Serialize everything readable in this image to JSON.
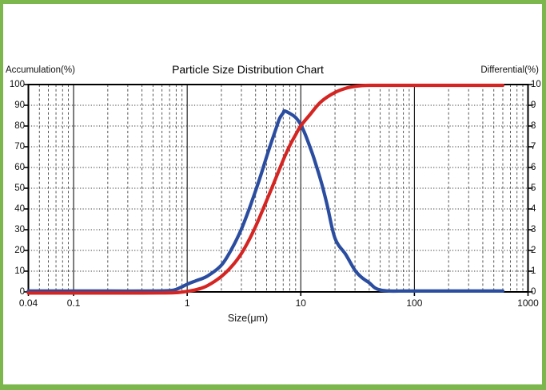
{
  "window": {
    "background_color": "#ffffff",
    "frame_border_color": "#7cb74e"
  },
  "chart_data": {
    "type": "line",
    "title": "Particle Size Distribution Chart",
    "x_axis": {
      "label": "Size(μm)",
      "scale": "log",
      "min": 0.04,
      "max": 1000,
      "tick_values": [
        0.04,
        0.1,
        1,
        10,
        100,
        1000
      ],
      "tick_labels": [
        "0.04",
        "0.1",
        "1",
        "10",
        "100",
        "1000"
      ],
      "minor_grid": "log minor lines at 2-9 per decade and 0.05-0.09, dashed",
      "major_grid_values": [
        0.1,
        1,
        10,
        100
      ]
    },
    "y_axis_left": {
      "label": "Accumulation(%)",
      "min": 0,
      "max": 100,
      "tick_values": [
        0,
        10,
        20,
        30,
        40,
        50,
        60,
        70,
        80,
        90,
        100
      ],
      "tick_labels": [
        "0",
        "10",
        "20",
        "30",
        "40",
        "50",
        "60",
        "70",
        "80",
        "90",
        "100"
      ],
      "grid": "horizontal dotted line at every 10%"
    },
    "y_axis_right": {
      "label": "Differential(%)",
      "min": 0,
      "max": 10,
      "tick_values": [
        0,
        1,
        2,
        3,
        4,
        5,
        6,
        7,
        8,
        9,
        10
      ],
      "tick_labels": [
        "0",
        "1",
        "2",
        "3",
        "4",
        "5",
        "6",
        "7",
        "8",
        "9",
        "10"
      ]
    },
    "legend": "none",
    "grid_color": "#333333",
    "axis_color": "#000000",
    "series": [
      {
        "name": "differential",
        "axis": "right",
        "color": "#2b4da0",
        "line_width": 4.2,
        "points": [
          [
            0.04,
            0
          ],
          [
            0.1,
            0
          ],
          [
            0.2,
            0
          ],
          [
            0.5,
            0
          ],
          [
            0.7,
            0.02
          ],
          [
            0.8,
            0.08
          ],
          [
            1,
            0.33
          ],
          [
            1.2,
            0.5
          ],
          [
            1.5,
            0.72
          ],
          [
            2,
            1.25
          ],
          [
            2.5,
            2.1
          ],
          [
            3,
            3.0
          ],
          [
            3.5,
            3.95
          ],
          [
            4,
            4.85
          ],
          [
            4.5,
            5.7
          ],
          [
            5,
            6.5
          ],
          [
            5.5,
            7.2
          ],
          [
            6,
            7.8
          ],
          [
            6.5,
            8.35
          ],
          [
            7,
            8.62
          ],
          [
            7.2,
            8.72
          ],
          [
            8,
            8.6
          ],
          [
            9,
            8.4
          ],
          [
            10,
            8.05
          ],
          [
            11,
            7.55
          ],
          [
            12,
            7.0
          ],
          [
            13,
            6.45
          ],
          [
            15,
            5.35
          ],
          [
            17,
            4.2
          ],
          [
            20,
            2.55
          ],
          [
            25,
            1.75
          ],
          [
            30,
            1.0
          ],
          [
            35,
            0.62
          ],
          [
            40,
            0.4
          ],
          [
            45,
            0.15
          ],
          [
            50,
            0.05
          ],
          [
            60,
            0
          ],
          [
            80,
            0
          ],
          [
            100,
            0
          ],
          [
            200,
            0
          ],
          [
            400,
            0
          ],
          [
            600,
            0
          ]
        ]
      },
      {
        "name": "accumulation",
        "axis": "left",
        "color": "#d42522",
        "line_width": 4.2,
        "points": [
          [
            0.04,
            0
          ],
          [
            0.1,
            0
          ],
          [
            0.2,
            0
          ],
          [
            0.4,
            0
          ],
          [
            0.6,
            0.05
          ],
          [
            0.8,
            0.2
          ],
          [
            1,
            0.8
          ],
          [
            1.2,
            1.6
          ],
          [
            1.5,
            3.5
          ],
          [
            2,
            8
          ],
          [
            2.5,
            13.2
          ],
          [
            3,
            19
          ],
          [
            3.5,
            25.5
          ],
          [
            4,
            32
          ],
          [
            4.5,
            38.5
          ],
          [
            5,
            44.5
          ],
          [
            6,
            55
          ],
          [
            7,
            64
          ],
          [
            8,
            71
          ],
          [
            9,
            76.2
          ],
          [
            10,
            80.5
          ],
          [
            12,
            85.8
          ],
          [
            15,
            92
          ],
          [
            20,
            96.6
          ],
          [
            25,
            98.6
          ],
          [
            30,
            99.5
          ],
          [
            35,
            99.9
          ],
          [
            40,
            100
          ],
          [
            50,
            100
          ],
          [
            70,
            100
          ],
          [
            100,
            100
          ],
          [
            200,
            100
          ],
          [
            400,
            100
          ],
          [
            600,
            100
          ]
        ]
      }
    ]
  }
}
